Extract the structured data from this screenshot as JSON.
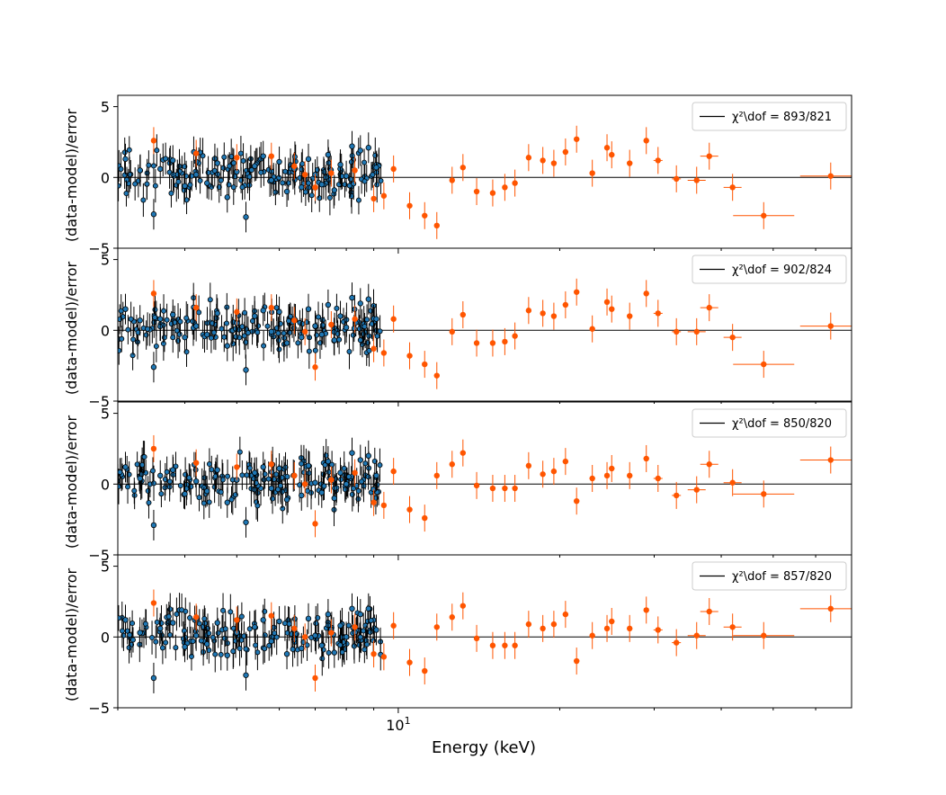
{
  "chart_data": {
    "type": "scatter",
    "xlabel": "Energy (keV)",
    "x_scale": "log",
    "xlim": [
      3.0,
      70.0
    ],
    "x_major_tick_labels": [
      {
        "value": 10,
        "label": "10"
      }
    ],
    "x_minor_ticks": [
      3,
      4,
      5,
      6,
      7,
      8,
      9,
      20,
      30,
      40,
      50,
      60
    ],
    "colors": {
      "series_a_marker": "#1f77b4",
      "series_a_errorbar": "#000000",
      "series_b": "#ff5500",
      "zero_line": "#000000"
    },
    "panels": [
      {
        "ylabel": "(data-model)/error",
        "ylim": [
          -5,
          5.8
        ],
        "yticks": [
          -5,
          0,
          5
        ],
        "legend": "χ²\\dof = 893/821",
        "series_b": {
          "x": [
            3.5,
            4.2,
            5.0,
            5.8,
            6.4,
            6.7,
            7.0,
            7.5,
            8.3,
            9.0,
            9.4,
            9.8,
            10.5,
            11.2,
            11.8,
            12.6,
            13.2,
            14.0,
            15.0,
            15.8,
            16.5,
            17.5,
            18.6,
            19.5,
            20.5,
            21.5,
            23.0,
            24.5,
            25.0,
            27.0,
            29.0,
            30.5,
            33.0,
            36.0,
            38.0,
            42.0,
            48.0,
            64.0
          ],
          "y": [
            2.6,
            1.7,
            1.4,
            1.5,
            0.8,
            0.2,
            -0.7,
            0.3,
            0.5,
            -1.5,
            -1.3,
            0.6,
            -2.0,
            -2.7,
            -3.4,
            -0.2,
            0.7,
            -1.0,
            -1.1,
            -0.7,
            -0.4,
            1.4,
            1.2,
            1.0,
            1.8,
            2.7,
            0.3,
            2.1,
            1.6,
            1.0,
            2.6,
            1.2,
            -0.1,
            -0.2,
            1.5,
            -0.7,
            -2.7,
            0.1
          ]
        },
        "series_a": {
          "x": [
            3.1,
            3.3,
            3.5,
            3.6,
            3.8,
            4.0,
            4.2,
            4.4,
            4.6,
            4.8,
            5.0,
            5.2,
            5.4,
            5.6,
            5.8,
            6.0,
            6.2,
            6.4,
            6.6,
            6.8,
            7.0,
            7.2,
            7.4,
            7.6,
            7.8,
            8.0,
            8.2,
            8.5,
            8.8,
            9.1
          ],
          "y": [
            1.3,
            0.5,
            -2.6,
            0.6,
            1.2,
            -0.6,
            0.2,
            -0.4,
            1.0,
            -1.4,
            0.4,
            -2.8,
            0.8,
            1.5,
            -0.2,
            1.1,
            -1.0,
            0.6,
            -0.7,
            1.3,
            0.2,
            -0.5,
            1.6,
            -0.9,
            0.9,
            0.1,
            2.2,
            1.9,
            2.1,
            0.7
          ]
        }
      },
      {
        "ylabel": "(data-model)/error",
        "ylim": [
          -5,
          5.8
        ],
        "yticks": [
          -5,
          0,
          5
        ],
        "legend": "χ²\\dof = 902/824",
        "series_b": {
          "x": [
            3.5,
            4.2,
            5.0,
            5.8,
            6.4,
            6.7,
            7.0,
            7.5,
            8.3,
            9.0,
            9.4,
            9.8,
            10.5,
            11.2,
            11.8,
            12.6,
            13.2,
            14.0,
            15.0,
            15.8,
            16.5,
            17.5,
            18.6,
            19.5,
            20.5,
            21.5,
            23.0,
            24.5,
            25.0,
            27.0,
            29.0,
            30.5,
            33.0,
            36.0,
            38.0,
            42.0,
            48.0,
            64.0
          ],
          "y": [
            2.6,
            1.6,
            1.3,
            1.6,
            0.7,
            -0.1,
            -2.6,
            0.4,
            0.8,
            -1.3,
            -1.6,
            0.8,
            -1.8,
            -2.4,
            -3.2,
            -0.1,
            1.1,
            -0.9,
            -0.9,
            -0.8,
            -0.4,
            1.4,
            1.2,
            1.0,
            1.8,
            2.7,
            0.1,
            2.0,
            1.5,
            1.0,
            2.6,
            1.2,
            -0.1,
            -0.1,
            1.6,
            -0.5,
            -2.4,
            0.3
          ]
        },
        "series_a": {
          "x": [
            3.1,
            3.3,
            3.5,
            3.6,
            3.8,
            4.0,
            4.2,
            4.4,
            4.6,
            4.8,
            5.0,
            5.2,
            5.4,
            5.6,
            5.8,
            6.0,
            6.2,
            6.4,
            6.6,
            6.8,
            7.0,
            7.2,
            7.4,
            7.6,
            7.8,
            8.0,
            8.2,
            8.5,
            8.8,
            9.1
          ],
          "y": [
            1.5,
            0.7,
            -2.6,
            0.8,
            1.1,
            -0.5,
            0.3,
            -0.3,
            1.2,
            -1.1,
            0.5,
            -2.8,
            1.0,
            1.4,
            -0.1,
            1.3,
            -0.9,
            0.8,
            -0.5,
            1.5,
            0.3,
            -0.3,
            1.8,
            -0.7,
            1.0,
            0.2,
            2.3,
            1.9,
            2.2,
            0.8
          ]
        }
      },
      {
        "ylabel": "(data-model)/error",
        "ylim": [
          -5,
          5.8
        ],
        "yticks": [
          -5,
          0,
          5
        ],
        "legend": "χ²\\dof = 850/820",
        "series_b": {
          "x": [
            3.5,
            4.2,
            5.0,
            5.8,
            6.4,
            6.7,
            7.0,
            7.5,
            8.3,
            9.0,
            9.4,
            9.8,
            10.5,
            11.2,
            11.8,
            12.6,
            13.2,
            14.0,
            15.0,
            15.8,
            16.5,
            17.5,
            18.6,
            19.5,
            20.5,
            21.5,
            23.0,
            24.5,
            25.0,
            27.0,
            29.0,
            30.5,
            33.0,
            36.0,
            38.0,
            42.0,
            48.0,
            64.0
          ],
          "y": [
            2.5,
            1.5,
            1.2,
            1.4,
            0.6,
            0.0,
            -2.8,
            0.3,
            0.8,
            -1.3,
            -1.5,
            0.9,
            -1.8,
            -2.4,
            0.6,
            1.4,
            2.2,
            -0.1,
            -0.3,
            -0.3,
            -0.3,
            1.3,
            0.7,
            0.9,
            1.6,
            -1.2,
            0.4,
            0.6,
            1.1,
            0.6,
            1.8,
            0.4,
            -0.8,
            -0.4,
            1.4,
            0.1,
            -0.7,
            1.7
          ]
        },
        "series_a": {
          "x": [
            3.1,
            3.3,
            3.5,
            3.6,
            3.8,
            4.0,
            4.2,
            4.4,
            4.6,
            4.8,
            5.0,
            5.2,
            5.4,
            5.6,
            5.8,
            6.0,
            6.2,
            6.4,
            6.6,
            6.8,
            7.0,
            7.2,
            7.4,
            7.6,
            7.8,
            8.0,
            8.2,
            8.5,
            8.8,
            9.1
          ],
          "y": [
            1.2,
            0.4,
            -2.9,
            0.6,
            1.0,
            -0.7,
            0.2,
            -0.5,
            1.0,
            -1.3,
            0.3,
            -2.7,
            0.8,
            1.2,
            -0.3,
            1.1,
            -1.1,
            0.6,
            -0.8,
            1.3,
            0.1,
            -0.6,
            1.6,
            -1.0,
            0.8,
            0.0,
            2.2,
            1.7,
            2.0,
            0.6
          ]
        }
      },
      {
        "ylabel": "(data-model)/error",
        "ylim": [
          -5,
          5.8
        ],
        "yticks": [
          -5,
          0,
          5
        ],
        "legend": "χ²\\dof = 857/820",
        "series_b": {
          "x": [
            3.5,
            4.2,
            5.0,
            5.8,
            6.4,
            6.7,
            7.0,
            7.5,
            8.3,
            9.0,
            9.4,
            9.8,
            10.5,
            11.2,
            11.8,
            12.6,
            13.2,
            14.0,
            15.0,
            15.8,
            16.5,
            17.5,
            18.6,
            19.5,
            20.5,
            21.5,
            23.0,
            24.5,
            25.0,
            27.0,
            29.0,
            30.5,
            33.0,
            36.0,
            38.0,
            42.0,
            48.0,
            64.0
          ],
          "y": [
            2.4,
            1.4,
            1.2,
            1.5,
            0.6,
            0.0,
            -2.9,
            0.3,
            0.7,
            -1.2,
            -1.4,
            0.8,
            -1.8,
            -2.4,
            0.7,
            1.4,
            2.2,
            -0.1,
            -0.6,
            -0.6,
            -0.6,
            0.9,
            0.6,
            0.9,
            1.6,
            -1.7,
            0.1,
            0.6,
            1.1,
            0.6,
            1.9,
            0.5,
            -0.4,
            0.1,
            1.8,
            0.7,
            0.1,
            2.0
          ]
        },
        "series_a": {
          "x": [
            3.1,
            3.3,
            3.5,
            3.6,
            3.8,
            4.0,
            4.2,
            4.4,
            4.6,
            4.8,
            5.0,
            5.2,
            5.4,
            5.6,
            5.8,
            6.0,
            6.2,
            6.4,
            6.6,
            6.8,
            7.0,
            7.2,
            7.4,
            7.6,
            7.8,
            8.0,
            8.2,
            8.5,
            8.8,
            9.1
          ],
          "y": [
            1.2,
            0.3,
            -2.9,
            0.6,
            1.0,
            -0.7,
            0.1,
            -0.5,
            1.0,
            -1.3,
            0.3,
            -2.7,
            0.7,
            1.2,
            -0.3,
            1.1,
            -1.2,
            0.5,
            -0.8,
            1.3,
            0.1,
            -0.6,
            1.6,
            -1.1,
            0.8,
            0.0,
            2.0,
            1.6,
            2.0,
            0.5
          ]
        }
      }
    ]
  }
}
